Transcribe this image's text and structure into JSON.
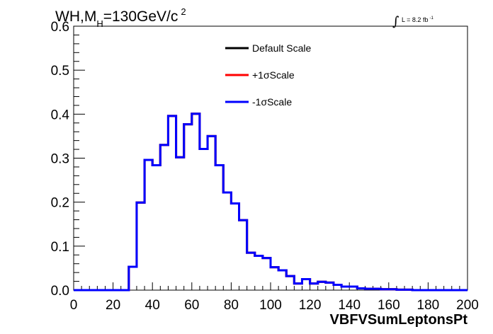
{
  "chart_data": {
    "type": "line",
    "title_parts": {
      "main": "WH,M",
      "sub": "H",
      "rest": "=130GeV/c",
      "sup": "2"
    },
    "lumi": {
      "integral": "∫",
      "text": "L = 8.2 fb",
      "sup": "-1"
    },
    "xlabel": "VBFVSumLeptonsPt",
    "ylabel": "",
    "xlim": [
      0,
      200
    ],
    "ylim": [
      0,
      0.6
    ],
    "x_ticks": [
      0,
      20,
      40,
      60,
      80,
      100,
      120,
      140,
      160,
      180,
      200
    ],
    "x_tick_labels": [
      "0",
      "20",
      "40",
      "60",
      "80",
      "100",
      "120",
      "140",
      "160",
      "180",
      "200"
    ],
    "y_ticks": [
      0,
      0.1,
      0.2,
      0.3,
      0.4,
      0.5,
      0.6
    ],
    "y_tick_labels": [
      "0.0",
      "0.1",
      "0.2",
      "0.3",
      "0.4",
      "0.5",
      "0.6"
    ],
    "bin_width": 4,
    "bin_edges_start": 0,
    "grid": false,
    "legend_position": "top-center",
    "series": [
      {
        "name": "Default Scale",
        "color": "#000000",
        "values": [
          0,
          0,
          0,
          0,
          0,
          0,
          0,
          0.053,
          0.199,
          0.296,
          0.284,
          0.33,
          0.396,
          0.302,
          0.377,
          0.401,
          0.321,
          0.35,
          0.284,
          0.222,
          0.197,
          0.159,
          0.085,
          0.078,
          0.073,
          0.052,
          0.045,
          0.032,
          0.015,
          0.025,
          0.015,
          0.019,
          0.017,
          0.012,
          0.008,
          0.008,
          0.004,
          0.003,
          0.003,
          0.002,
          0.002,
          0.001,
          0.001,
          0,
          0,
          0,
          0,
          0,
          0,
          0
        ]
      },
      {
        "name": "+1σScale",
        "color": "#ff0000",
        "values": [
          0,
          0,
          0,
          0,
          0,
          0,
          0,
          0.053,
          0.199,
          0.296,
          0.284,
          0.33,
          0.396,
          0.302,
          0.377,
          0.401,
          0.321,
          0.35,
          0.284,
          0.222,
          0.197,
          0.159,
          0.085,
          0.078,
          0.073,
          0.052,
          0.045,
          0.032,
          0.015,
          0.025,
          0.015,
          0.019,
          0.017,
          0.012,
          0.008,
          0.008,
          0.004,
          0.003,
          0.003,
          0.002,
          0.002,
          0.001,
          0.001,
          0,
          0,
          0,
          0,
          0,
          0,
          0
        ]
      },
      {
        "name": "-1σScale",
        "color": "#0000ff",
        "values": [
          0,
          0,
          0,
          0,
          0,
          0,
          0,
          0.053,
          0.199,
          0.296,
          0.284,
          0.33,
          0.396,
          0.302,
          0.377,
          0.401,
          0.321,
          0.35,
          0.284,
          0.222,
          0.197,
          0.159,
          0.085,
          0.078,
          0.073,
          0.052,
          0.045,
          0.032,
          0.015,
          0.025,
          0.015,
          0.019,
          0.017,
          0.012,
          0.008,
          0.008,
          0.004,
          0.003,
          0.003,
          0.002,
          0.002,
          0.001,
          0.001,
          0,
          0,
          0,
          0,
          0,
          0,
          0
        ]
      }
    ]
  }
}
